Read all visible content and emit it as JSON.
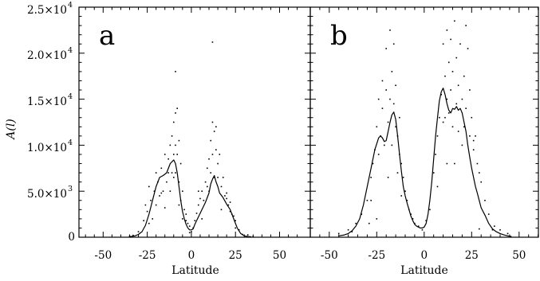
{
  "chart_data": [
    {
      "panel": "a",
      "type": "scatter",
      "xlabel": "Latitude",
      "ylabel": "A(l)",
      "xlim": [
        -60,
        60
      ],
      "ylim": [
        0,
        25000
      ],
      "xticks": [
        "-50",
        "-25",
        "0",
        "25",
        "50"
      ],
      "yticks": [
        {
          "m": "0",
          "e": ""
        },
        {
          "m": "5.0×10",
          "e": "3"
        },
        {
          "m": "1.0×10",
          "e": "4"
        },
        {
          "m": "1.5×10",
          "e": "4"
        },
        {
          "m": "2.0×10",
          "e": "4"
        },
        {
          "m": "2.5×10",
          "e": "4"
        }
      ],
      "series": [
        {
          "style": "line",
          "x": [
            -35,
            -32,
            -30,
            -28,
            -26,
            -24,
            -22,
            -20,
            -18,
            -16,
            -14,
            -12,
            -10,
            -9,
            -8,
            -7,
            -6,
            -5,
            -4,
            -3,
            -2,
            -1,
            0,
            1,
            2,
            4,
            6,
            8,
            10,
            11,
            12,
            13,
            14,
            15,
            16,
            18,
            20,
            22,
            24,
            26,
            28,
            30,
            32,
            34
          ],
          "y": [
            50,
            150,
            300,
            600,
            1300,
            2500,
            4000,
            5500,
            6500,
            6700,
            7000,
            8000,
            8400,
            8000,
            7000,
            5500,
            4000,
            2800,
            2000,
            1400,
            1000,
            800,
            800,
            900,
            1400,
            2200,
            3000,
            3800,
            4800,
            5800,
            6300,
            6700,
            6000,
            5500,
            4800,
            4300,
            3600,
            3000,
            2000,
            1000,
            400,
            150,
            80,
            30
          ]
        },
        {
          "style": "points",
          "x": [
            -30,
            -27,
            -25,
            -24,
            -23,
            -22,
            -21,
            -20,
            -19,
            -18,
            -17,
            -16,
            -15,
            -14,
            -13,
            -12,
            -12,
            -11,
            -11,
            -10,
            -10,
            -10,
            -9,
            -9,
            -9,
            -9,
            -8,
            -8,
            -7,
            -7,
            -6,
            -6,
            -5,
            -4,
            -3,
            -2,
            -1,
            0,
            1,
            2,
            3,
            4,
            5,
            6,
            7,
            8,
            9,
            10,
            10,
            11,
            11,
            12,
            12,
            12,
            13,
            13,
            14,
            14,
            15,
            16,
            17,
            18,
            19,
            20,
            21,
            22,
            23,
            24,
            25,
            27,
            29,
            -35,
            -33,
            32,
            35,
            -26,
            -24,
            -20,
            -17,
            -15,
            -13,
            -7,
            -5,
            -3,
            -1,
            4,
            6,
            9,
            15,
            17,
            20,
            22,
            25
          ],
          "y": [
            600,
            1800,
            2800,
            1500,
            4000,
            2000,
            5000,
            3500,
            6000,
            4500,
            7500,
            5000,
            9000,
            6000,
            8500,
            10000,
            5000,
            11000,
            7000,
            12500,
            9000,
            6500,
            13500,
            10000,
            18000,
            7000,
            14000,
            9000,
            10500,
            6000,
            8000,
            4000,
            5000,
            3000,
            2500,
            1500,
            1200,
            600,
            1000,
            1800,
            2600,
            3500,
            4200,
            5000,
            4000,
            6000,
            5500,
            8500,
            5000,
            10500,
            7000,
            12500,
            9000,
            21200,
            11500,
            6500,
            9500,
            12000,
            8000,
            9000,
            5500,
            6500,
            4500,
            4800,
            3500,
            3800,
            2500,
            2300,
            1800,
            800,
            300,
            100,
            200,
            250,
            80,
            3500,
            5500,
            7000,
            4800,
            3200,
            7000,
            3500,
            2000,
            1800,
            500,
            5000,
            2000,
            7500,
            6500,
            3000,
            4200,
            2800,
            1000
          ]
        }
      ]
    },
    {
      "panel": "b",
      "type": "scatter",
      "xlabel": "Latitude",
      "xlim": [
        -60,
        60
      ],
      "ylim": [
        0,
        25000
      ],
      "xticks": [
        "-50",
        "-25",
        "0",
        "25",
        "50"
      ],
      "series": [
        {
          "style": "line",
          "x": [
            -45,
            -42,
            -40,
            -38,
            -36,
            -34,
            -32,
            -30,
            -28,
            -26,
            -24,
            -23,
            -22,
            -21,
            -20,
            -19,
            -18,
            -17,
            -16,
            -15,
            -14,
            -13,
            -12,
            -11,
            -10,
            -9,
            -8,
            -7,
            -6,
            -5,
            -4,
            -3,
            -2,
            -1,
            0,
            1,
            2,
            3,
            4,
            5,
            6,
            7,
            8,
            9,
            10,
            11,
            12,
            13,
            14,
            15,
            16,
            17,
            18,
            19,
            20,
            21,
            22,
            23,
            24,
            25,
            26,
            27,
            28,
            29,
            30,
            32,
            34,
            36,
            38,
            40,
            42,
            44,
            46
          ],
          "y": [
            150,
            250,
            400,
            700,
            1200,
            2000,
            3500,
            5500,
            7500,
            9500,
            10800,
            11000,
            10800,
            10400,
            10500,
            11500,
            12500,
            13300,
            13600,
            12800,
            11000,
            9000,
            7200,
            5500,
            4500,
            3700,
            3000,
            2300,
            1800,
            1400,
            1200,
            1100,
            1000,
            1000,
            1100,
            1500,
            2500,
            4000,
            6000,
            8500,
            11000,
            13000,
            14800,
            15800,
            16200,
            15500,
            14500,
            13800,
            13500,
            14000,
            13900,
            14200,
            13800,
            14000,
            13500,
            12500,
            11500,
            10000,
            8700,
            7500,
            6500,
            5500,
            4800,
            4000,
            3200,
            2400,
            1500,
            900,
            600,
            400,
            250,
            150,
            80
          ]
        },
        {
          "style": "points",
          "x": [
            -45,
            -40,
            -36,
            -33,
            -30,
            -28,
            -27,
            -26,
            -25,
            -24,
            -24,
            -23,
            -22,
            -22,
            -21,
            -20,
            -20,
            -19,
            -18,
            -18,
            -17,
            -17,
            -16,
            -16,
            -15,
            -15,
            -14,
            -13,
            -13,
            -12,
            -11,
            -10,
            -9,
            -8,
            -7,
            -6,
            -5,
            -3,
            -1,
            1,
            3,
            5,
            6,
            7,
            8,
            9,
            10,
            10,
            11,
            11,
            12,
            12,
            13,
            13,
            14,
            14,
            15,
            15,
            16,
            17,
            17,
            18,
            18,
            19,
            20,
            21,
            21,
            22,
            22,
            23,
            24,
            25,
            26,
            27,
            28,
            30,
            32,
            34,
            37,
            40,
            44,
            -28,
            -25,
            -19,
            -14,
            -12,
            7,
            12,
            16,
            20,
            24,
            26,
            29,
            -38,
            36,
            -29,
            29
          ],
          "y": [
            400,
            800,
            1500,
            2500,
            4000,
            6500,
            8000,
            9500,
            12000,
            9000,
            15000,
            11000,
            14000,
            17000,
            10000,
            16000,
            20500,
            12500,
            22500,
            15000,
            18000,
            10000,
            14500,
            21000,
            12000,
            16500,
            11000,
            9000,
            13000,
            8000,
            6500,
            5000,
            4000,
            3000,
            2500,
            2000,
            1500,
            1200,
            800,
            1800,
            3000,
            7000,
            9000,
            11000,
            13000,
            15500,
            21000,
            12500,
            17500,
            13000,
            22500,
            15000,
            19000,
            13500,
            16000,
            21500,
            12000,
            18000,
            23500,
            14500,
            19500,
            11500,
            16500,
            21000,
            15000,
            17500,
            12000,
            23000,
            14000,
            20500,
            16000,
            13000,
            9500,
            11000,
            8000,
            6000,
            4000,
            2500,
            1200,
            800,
            400,
            4000,
            2000,
            6500,
            7000,
            4500,
            5500,
            8000,
            8000,
            10000,
            11000,
            10500,
            7000,
            600,
            800,
            1500,
            900
          ]
        }
      ]
    }
  ]
}
